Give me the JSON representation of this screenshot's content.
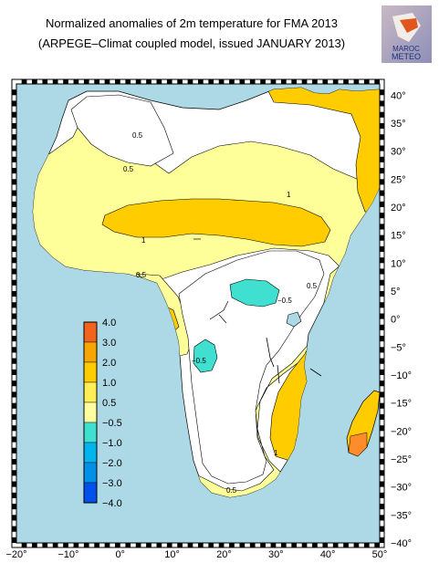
{
  "title": {
    "line1": "Normalized anomalies of 2m temperature for FMA 2013",
    "line2": "(ARPEGE–Climat coupled model, issued JANUARY 2013)"
  },
  "logo": {
    "line1": "MAROC",
    "line2": "METEO"
  },
  "map": {
    "region": "Africa",
    "variable": "2m temperature normalized anomaly",
    "lon_range": [
      -20,
      50
    ],
    "lat_range": [
      -40,
      42
    ],
    "colors": {
      "ocean": "#add8e6",
      "white": "#ffffff",
      "pale_yellow": "#ffff99",
      "yellow": "#ffcc00",
      "orange": "#ff8c2a",
      "cyan": "#40e0d0"
    }
  },
  "x_ticks": [
    "−20°",
    "−10°",
    "0°",
    "10°",
    "20°",
    "30°",
    "40°",
    "50°"
  ],
  "y_ticks": [
    "40°",
    "35°",
    "30°",
    "25°",
    "20°",
    "15°",
    "10°",
    "5°",
    "0°",
    "−5°",
    "−10°",
    "−15°",
    "−20°",
    "−25°",
    "−30°",
    "−35°",
    "−40°"
  ],
  "legend": {
    "labels": [
      "4.0",
      "3.0",
      "2.0",
      "1.0",
      "0.5",
      "−0.5",
      "−1.0",
      "−2.0",
      "−3.0",
      "−4.0"
    ],
    "colors": [
      "#f2641e",
      "#f7a600",
      "#ffcc00",
      "#ffee55",
      "#ffffa0",
      "#ffffff",
      "#40e0d0",
      "#00b4ee",
      "#0090e8",
      "#0050f0"
    ]
  },
  "contour_labels": [
    "0.5",
    "0.5",
    "1",
    "1",
    "0.5",
    "0.5",
    "−0.5",
    "−0.5",
    "1",
    "0.5"
  ]
}
